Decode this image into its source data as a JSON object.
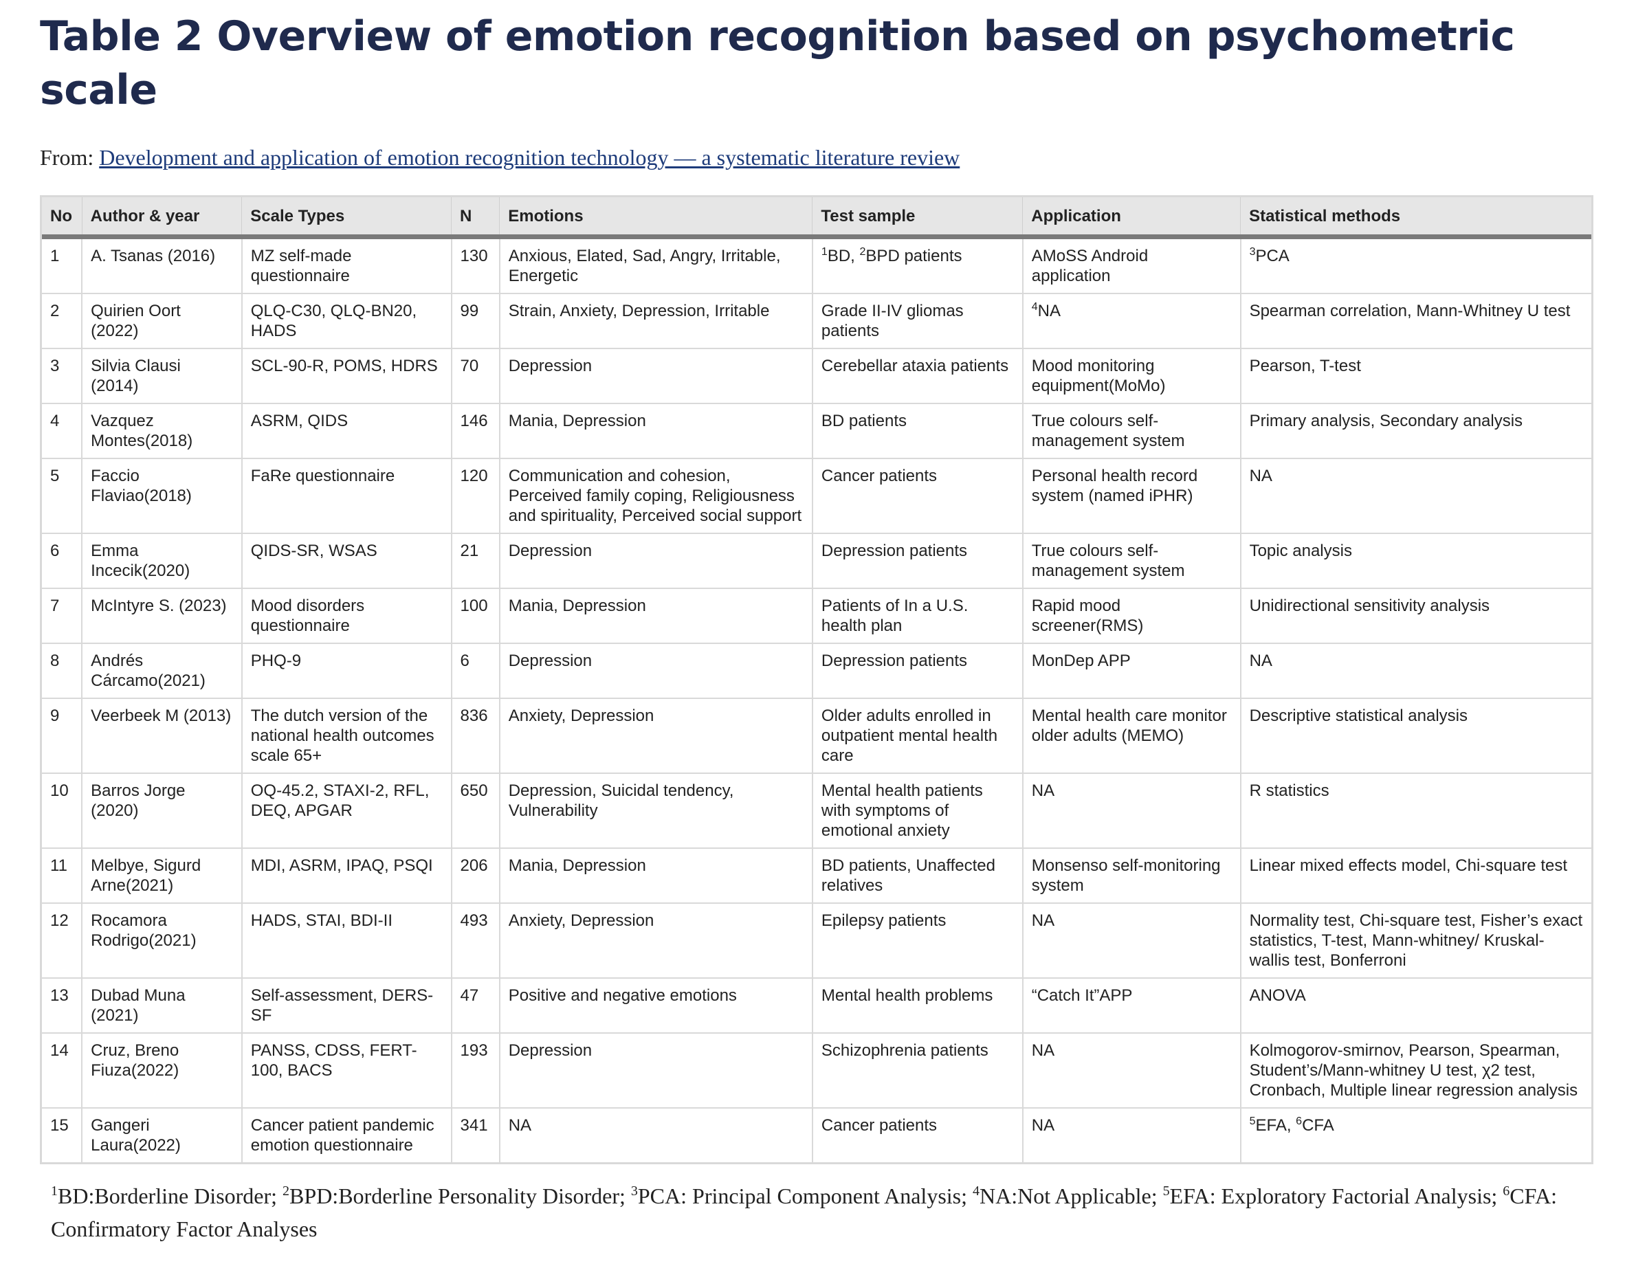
{
  "title": "Table 2 Overview of emotion recognition based on psychometric scale",
  "source": {
    "prefix": "From:",
    "link_text": "Development and application of emotion recognition technology — a systematic literature review"
  },
  "table": {
    "columns": [
      "No",
      "Author & year",
      "Scale Types",
      "N",
      "Emotions",
      "Test sample",
      "Application",
      "Statistical methods"
    ],
    "rows": [
      [
        "1",
        "A. Tsanas (2016)",
        "MZ self-made questionnaire",
        "130",
        "Anxious, Elated, Sad, Angry, Irritable, Energetic",
        "¹BD, ²BPD patients",
        "AMoSS Android application",
        "³PCA"
      ],
      [
        "2",
        "Quirien Oort (2022)",
        "QLQ-C30, QLQ-BN20, HADS",
        "99",
        "Strain, Anxiety, Depression, Irritable",
        "Grade II-IV gliomas patients",
        "⁴NA",
        "Spearman correlation, Mann-Whitney U test"
      ],
      [
        "3",
        "Silvia Clausi (2014)",
        "SCL-90-R, POMS, HDRS",
        "70",
        "Depression",
        "Cerebellar ataxia patients",
        "Mood monitoring equipment(MoMo)",
        "Pearson, T-test"
      ],
      [
        "4",
        "Vazquez Montes(2018)",
        "ASRM, QIDS",
        "146",
        "Mania, Depression",
        "BD patients",
        "True colours self-management system",
        "Primary analysis, Secondary analysis"
      ],
      [
        "5",
        "Faccio Flaviao(2018)",
        "FaRe questionnaire",
        "120",
        "Communication and cohesion, Perceived family coping, Religiousness and spirituality, Perceived social support",
        "Cancer patients",
        "Personal health record system (named iPHR)",
        "NA"
      ],
      [
        "6",
        "Emma Incecik(2020)",
        "QIDS-SR, WSAS",
        "21",
        "Depression",
        "Depression patients",
        "True colours self-management system",
        "Topic analysis"
      ],
      [
        "7",
        "McIntyre S. (2023)",
        "Mood disorders questionnaire",
        "100",
        "Mania, Depression",
        "Patients of In a U.S. health plan",
        "Rapid mood screener(RMS)",
        "Unidirectional sensitivity analysis"
      ],
      [
        "8",
        "Andrés Cárcamo(2021)",
        "PHQ-9",
        "6",
        "Depression",
        "Depression patients",
        "MonDep APP",
        "NA"
      ],
      [
        "9",
        "Veerbeek M (2013)",
        "The dutch version of the national health outcomes scale 65+",
        "836",
        "Anxiety, Depression",
        "Older adults enrolled in outpatient mental health care",
        "Mental health care monitor older adults (MEMO)",
        "Descriptive statistical analysis"
      ],
      [
        "10",
        "Barros Jorge (2020)",
        "OQ-45.2, STAXI-2, RFL, DEQ, APGAR",
        "650",
        "Depression, Suicidal tendency, Vulnerability",
        "Mental health patients with symptoms of emotional anxiety",
        "NA",
        "R statistics"
      ],
      [
        "11",
        "Melbye, Sigurd Arne(2021)",
        "MDI, ASRM, IPAQ, PSQI",
        "206",
        "Mania, Depression",
        "BD patients, Unaffected relatives",
        "Monsenso self-monitoring system",
        "Linear mixed effects model, Chi-square test"
      ],
      [
        "12",
        "Rocamora Rodrigo(2021)",
        "HADS, STAI, BDI-II",
        "493",
        "Anxiety, Depression",
        "Epilepsy patients",
        "NA",
        "Normality test, Chi-square test, Fisher’s exact statistics, T-test, Mann-whitney/ Kruskal-wallis test, Bonferroni"
      ],
      [
        "13",
        "Dubad Muna (2021)",
        "Self-assessment, DERS-SF",
        "47",
        "Positive and negative emotions",
        "Mental health problems",
        "“Catch It”APP",
        "ANOVA"
      ],
      [
        "14",
        "Cruz, Breno Fiuza(2022)",
        "PANSS, CDSS, FERT-100, BACS",
        "193",
        "Depression",
        "Schizophrenia patients",
        "NA",
        "Kolmogorov-smirnov, Pearson, Spearman, Student’s/Mann-whitney U test, χ2 test, Cronbach, Multiple linear regression analysis"
      ],
      [
        "15",
        "Gangeri Laura(2022)",
        "Cancer patient pandemic emotion questionnaire",
        "341",
        "NA",
        "Cancer patients",
        "NA",
        "⁵EFA, ⁶CFA"
      ]
    ]
  },
  "footnotes": "¹BD:Borderline Disorder; ²BPD:Borderline Personality Disorder; ³PCA: Principal Component Analysis; ⁴NA:Not Applicable; ⁵EFA: Exploratory Factorial Analysis; ⁶CFA: Confirmatory Factor Analyses"
}
